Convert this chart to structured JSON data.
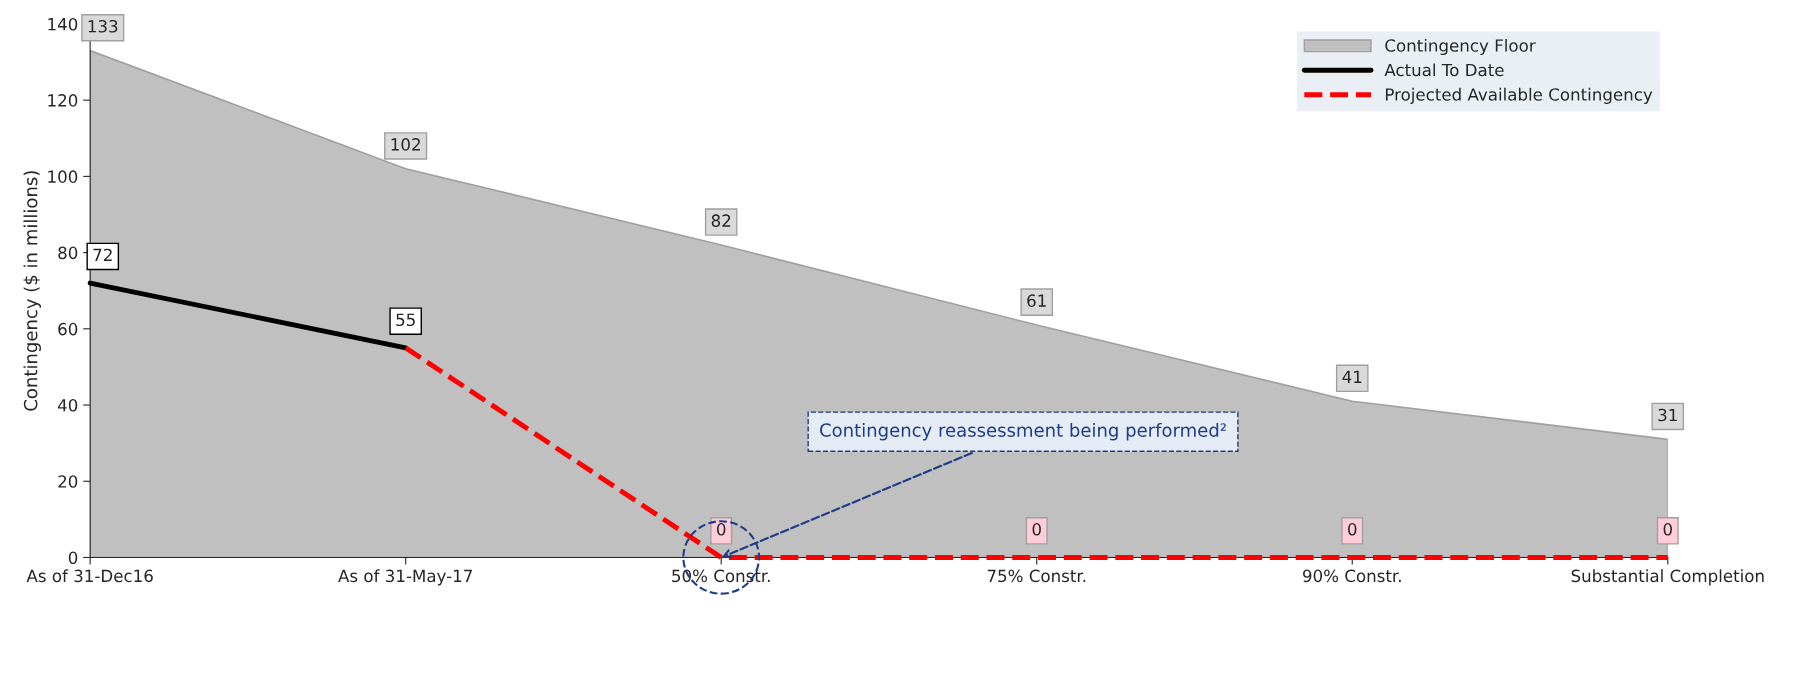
{
  "chart_data": {
    "type": "line",
    "ylabel": "Contingency ($ in millions)",
    "categories": [
      "As of 31-Dec16",
      "As of 31-May-17",
      "50% Constr.",
      "75% Constr.",
      "90% Constr.",
      "Substantial Completion"
    ],
    "series": [
      {
        "name": "Contingency Floor",
        "type": "area",
        "color": "#c0c0c0",
        "values": [
          133,
          102,
          82,
          61,
          41,
          31
        ],
        "value_labels": [
          "133",
          "102",
          "82",
          "61",
          "41",
          "31"
        ]
      },
      {
        "name": "Actual To Date",
        "line_style": "solid",
        "color": "#000000",
        "values": [
          72,
          55,
          null,
          null,
          null,
          null
        ],
        "value_labels": [
          "72",
          "55",
          null,
          null,
          null,
          null
        ]
      },
      {
        "name": "Projected Available Contingency",
        "line_style": "dashed",
        "color": "#ff0000",
        "values": [
          null,
          55,
          0,
          0,
          0,
          0
        ],
        "value_labels": [
          null,
          null,
          "0",
          "0",
          "0",
          "0"
        ]
      }
    ],
    "ylim": [
      0,
      140
    ],
    "yticks": [
      0,
      20,
      40,
      60,
      80,
      100,
      120,
      140
    ],
    "grid": false,
    "legend": "top right",
    "marker": "none",
    "annotations": [
      {
        "text": "Contingency reassessment being performed²",
        "x": "50% Constr.",
        "y": 0
      }
    ]
  }
}
